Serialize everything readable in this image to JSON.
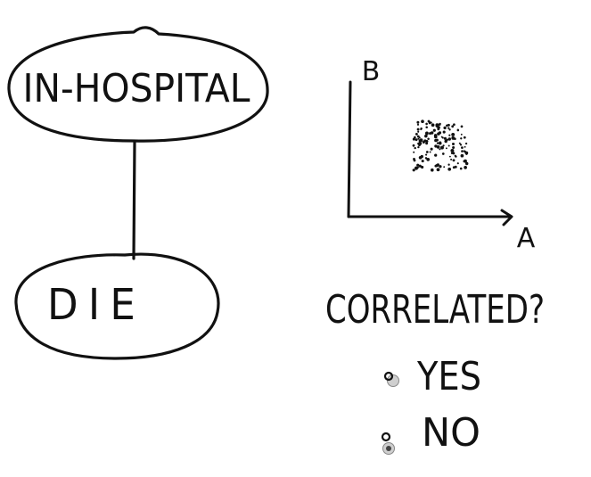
{
  "diagram": {
    "top_node": {
      "label": "IN-HOSPITAL"
    },
    "bottom_node": {
      "label": "DIE"
    }
  },
  "scatter": {
    "y_axis_label": "B",
    "x_axis_label": "A"
  },
  "question": {
    "prompt": "CORRELATED?",
    "options": [
      {
        "label": "YES",
        "selected": false
      },
      {
        "label": "NO",
        "selected": true
      }
    ]
  },
  "colors": {
    "ink": "#111111",
    "radio_fill": "#cfcfcf",
    "radio_selected_dot": "#444444"
  }
}
